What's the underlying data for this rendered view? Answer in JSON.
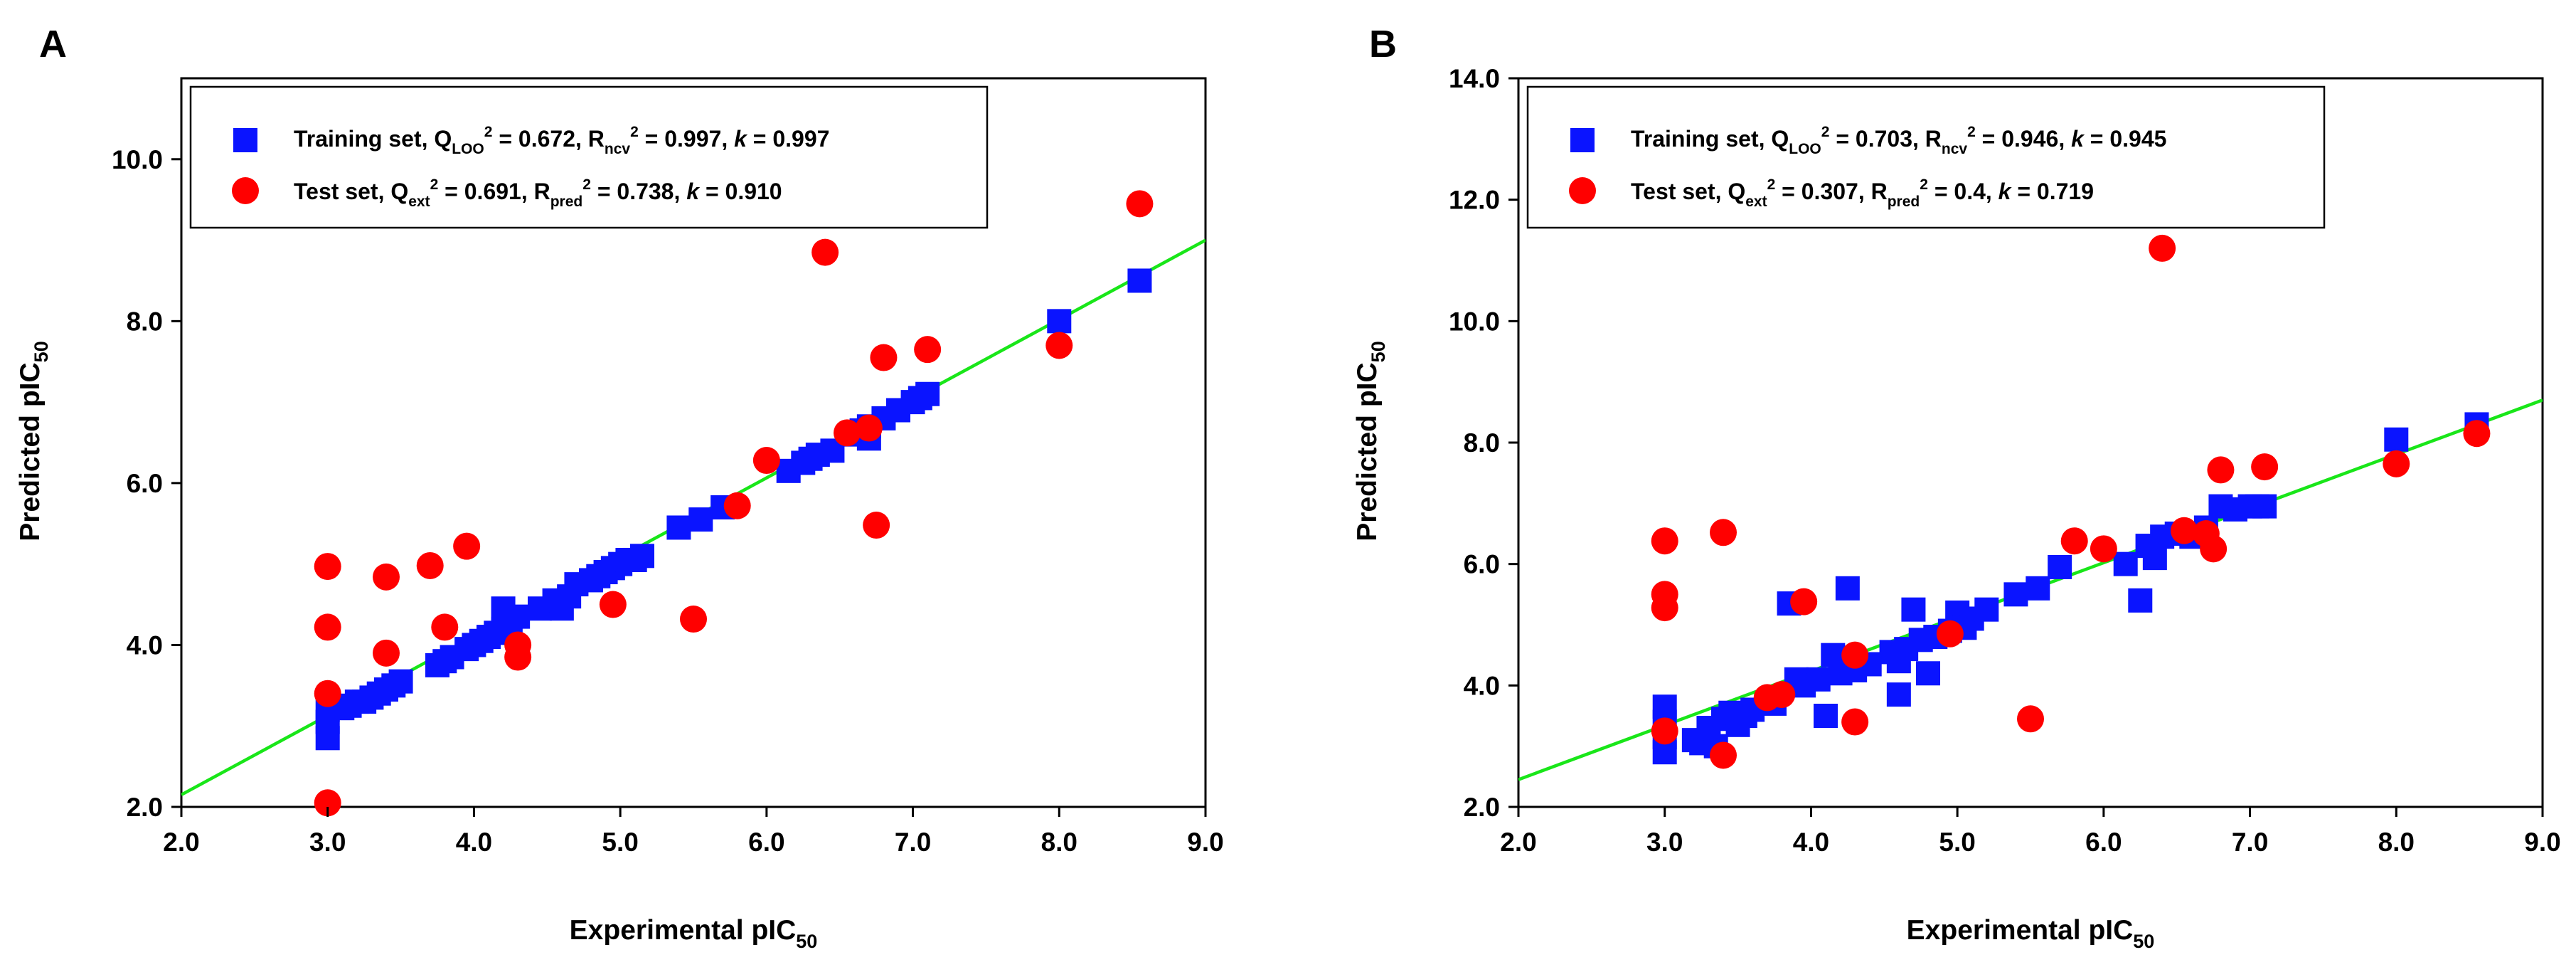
{
  "panels": [
    {
      "letter": "A",
      "legend": {
        "training": {
          "lead": "Training set, Q",
          "sub1": "LOO",
          "mid1": " = 0.672, R",
          "sub2": "ncv",
          "mid2": " = 0.997, ",
          "k": "k",
          "tail": " = 0.997"
        },
        "test": {
          "lead": "Test set, Q",
          "sub1": "ext",
          "mid1": " = 0.691, R",
          "sub2": "pred",
          "mid2": " = 0.738, ",
          "k": "k",
          "tail": " = 0.910"
        }
      }
    },
    {
      "letter": "B",
      "legend": {
        "training": {
          "lead": "Training set, Q",
          "sub1": "LOO",
          "mid1": " = 0.703, R",
          "sub2": "ncv",
          "mid2": " = 0.946, ",
          "k": "k",
          "tail": " = 0.945"
        },
        "test": {
          "lead": "Test set, Q",
          "sub1": "ext",
          "mid1": " = 0.307, R",
          "sub2": "pred",
          "mid2": " = 0.4, ",
          "k": "k",
          "tail": " = 0.719"
        }
      }
    }
  ],
  "axis_text": {
    "x_main": "Experimental pIC",
    "y_main": "Predicted pIC",
    "sub": "50",
    "sup": "2"
  },
  "chart_data": [
    {
      "type": "scatter",
      "title": "A",
      "xlabel": "Experimental pIC50",
      "ylabel": "Predicted pIC50",
      "xlim": [
        2.0,
        9.0
      ],
      "ylim": [
        2.0,
        11.0
      ],
      "xticks": [
        "2.0",
        "3.0",
        "4.0",
        "5.0",
        "6.0",
        "7.0",
        "8.0",
        "9.0"
      ],
      "yticks": [
        "2.0",
        "4.0",
        "6.0",
        "8.0",
        "10.0"
      ],
      "fit_line": [
        [
          2.0,
          2.15
        ],
        [
          9.0,
          9.0
        ]
      ],
      "series": [
        {
          "name": "Training set",
          "marker": "square",
          "color": "#0a14ff",
          "points": [
            [
              3.0,
              2.85
            ],
            [
              3.0,
              3.05
            ],
            [
              3.0,
              3.2
            ],
            [
              3.1,
              3.22
            ],
            [
              3.15,
              3.25
            ],
            [
              3.2,
              3.3
            ],
            [
              3.25,
              3.3
            ],
            [
              3.3,
              3.35
            ],
            [
              3.35,
              3.4
            ],
            [
              3.4,
              3.45
            ],
            [
              3.45,
              3.5
            ],
            [
              3.5,
              3.55
            ],
            [
              3.75,
              3.75
            ],
            [
              3.8,
              3.8
            ],
            [
              3.85,
              3.85
            ],
            [
              3.95,
              3.95
            ],
            [
              4.0,
              4.0
            ],
            [
              4.05,
              4.05
            ],
            [
              4.1,
              4.1
            ],
            [
              4.15,
              4.15
            ],
            [
              4.2,
              4.2
            ],
            [
              4.2,
              4.45
            ],
            [
              4.25,
              4.3
            ],
            [
              4.3,
              4.35
            ],
            [
              4.45,
              4.45
            ],
            [
              4.55,
              4.55
            ],
            [
              4.6,
              4.45
            ],
            [
              4.65,
              4.6
            ],
            [
              4.7,
              4.75
            ],
            [
              4.8,
              4.8
            ],
            [
              4.85,
              4.85
            ],
            [
              4.9,
              4.9
            ],
            [
              4.95,
              4.95
            ],
            [
              5.0,
              5.0
            ],
            [
              5.05,
              5.05
            ],
            [
              5.1,
              5.05
            ],
            [
              5.15,
              5.1
            ],
            [
              5.4,
              5.45
            ],
            [
              5.55,
              5.55
            ],
            [
              5.7,
              5.7
            ],
            [
              6.15,
              6.15
            ],
            [
              6.25,
              6.25
            ],
            [
              6.3,
              6.3
            ],
            [
              6.35,
              6.35
            ],
            [
              6.45,
              6.4
            ],
            [
              6.6,
              6.6
            ],
            [
              6.65,
              6.65
            ],
            [
              6.7,
              6.55
            ],
            [
              6.7,
              6.7
            ],
            [
              6.8,
              6.8
            ],
            [
              6.9,
              6.9
            ],
            [
              7.0,
              7.0
            ],
            [
              7.05,
              7.05
            ],
            [
              7.1,
              7.1
            ],
            [
              8.0,
              8.0
            ],
            [
              8.55,
              8.5
            ]
          ]
        },
        {
          "name": "Test set",
          "marker": "circle",
          "color": "#ff0000",
          "points": [
            [
              3.0,
              2.05
            ],
            [
              3.0,
              3.4
            ],
            [
              3.0,
              4.22
            ],
            [
              3.0,
              4.97
            ],
            [
              3.4,
              3.9
            ],
            [
              3.4,
              4.84
            ],
            [
              3.7,
              4.98
            ],
            [
              3.8,
              4.22
            ],
            [
              3.95,
              5.22
            ],
            [
              4.3,
              4.0
            ],
            [
              4.3,
              3.85
            ],
            [
              4.95,
              4.5
            ],
            [
              5.5,
              4.32
            ],
            [
              5.8,
              5.72
            ],
            [
              6.0,
              6.28
            ],
            [
              6.4,
              8.85
            ],
            [
              6.55,
              6.62
            ],
            [
              6.7,
              6.68
            ],
            [
              6.75,
              5.48
            ],
            [
              6.8,
              7.55
            ],
            [
              7.1,
              7.65
            ],
            [
              8.0,
              7.7
            ],
            [
              8.55,
              9.45
            ]
          ]
        }
      ]
    },
    {
      "type": "scatter",
      "title": "B",
      "xlabel": "Experimental pIC50",
      "ylabel": "Predicted pIC50",
      "xlim": [
        2.0,
        9.0
      ],
      "ylim": [
        2.0,
        14.0
      ],
      "xticks": [
        "2.0",
        "3.0",
        "4.0",
        "5.0",
        "6.0",
        "7.0",
        "8.0",
        "9.0"
      ],
      "yticks": [
        "2.0",
        "4.0",
        "6.0",
        "8.0",
        "10.0",
        "12.0",
        "14.0"
      ],
      "fit_line": [
        [
          2.0,
          2.45
        ],
        [
          9.0,
          8.7
        ]
      ],
      "series": [
        {
          "name": "Training set",
          "marker": "square",
          "color": "#0a14ff",
          "points": [
            [
              3.0,
              2.9
            ],
            [
              3.0,
              3.15
            ],
            [
              3.0,
              3.4
            ],
            [
              3.0,
              3.65
            ],
            [
              3.2,
              3.1
            ],
            [
              3.25,
              3.05
            ],
            [
              3.3,
              3.3
            ],
            [
              3.35,
              3.0
            ],
            [
              3.4,
              3.45
            ],
            [
              3.45,
              3.55
            ],
            [
              3.5,
              3.35
            ],
            [
              3.55,
              3.5
            ],
            [
              3.6,
              3.6
            ],
            [
              3.75,
              3.7
            ],
            [
              3.85,
              5.35
            ],
            [
              3.9,
              4.1
            ],
            [
              3.95,
              4.0
            ],
            [
              4.05,
              4.1
            ],
            [
              4.1,
              3.5
            ],
            [
              4.15,
              4.5
            ],
            [
              4.2,
              4.2
            ],
            [
              4.25,
              5.6
            ],
            [
              4.3,
              4.25
            ],
            [
              4.4,
              4.35
            ],
            [
              4.55,
              4.55
            ],
            [
              4.6,
              3.85
            ],
            [
              4.6,
              4.4
            ],
            [
              4.65,
              4.6
            ],
            [
              4.7,
              5.25
            ],
            [
              4.75,
              4.75
            ],
            [
              4.8,
              4.2
            ],
            [
              4.85,
              4.8
            ],
            [
              4.95,
              4.9
            ],
            [
              5.0,
              5.2
            ],
            [
              5.05,
              4.95
            ],
            [
              5.1,
              5.1
            ],
            [
              5.2,
              5.25
            ],
            [
              5.4,
              5.5
            ],
            [
              5.55,
              5.6
            ],
            [
              5.7,
              5.95
            ],
            [
              6.15,
              6.0
            ],
            [
              6.25,
              5.4
            ],
            [
              6.3,
              6.3
            ],
            [
              6.35,
              6.1
            ],
            [
              6.4,
              6.45
            ],
            [
              6.5,
              6.5
            ],
            [
              6.6,
              6.45
            ],
            [
              6.7,
              6.6
            ],
            [
              6.8,
              6.95
            ],
            [
              6.9,
              6.9
            ],
            [
              7.0,
              6.95
            ],
            [
              7.05,
              6.95
            ],
            [
              7.1,
              6.95
            ],
            [
              8.0,
              8.05
            ],
            [
              8.55,
              8.3
            ]
          ]
        },
        {
          "name": "Test set",
          "marker": "circle",
          "color": "#ff0000",
          "points": [
            [
              3.0,
              3.25
            ],
            [
              3.0,
              5.28
            ],
            [
              3.0,
              5.5
            ],
            [
              3.0,
              6.38
            ],
            [
              3.4,
              2.85
            ],
            [
              3.4,
              6.52
            ],
            [
              3.7,
              3.8
            ],
            [
              3.8,
              3.85
            ],
            [
              3.95,
              5.38
            ],
            [
              4.3,
              3.4
            ],
            [
              4.3,
              4.5
            ],
            [
              4.95,
              4.85
            ],
            [
              5.5,
              3.45
            ],
            [
              5.8,
              6.38
            ],
            [
              6.0,
              6.25
            ],
            [
              6.4,
              11.2
            ],
            [
              6.55,
              6.55
            ],
            [
              6.7,
              6.5
            ],
            [
              6.75,
              6.25
            ],
            [
              6.8,
              7.55
            ],
            [
              7.1,
              7.6
            ],
            [
              8.0,
              7.65
            ],
            [
              8.55,
              8.15
            ]
          ]
        }
      ]
    }
  ]
}
